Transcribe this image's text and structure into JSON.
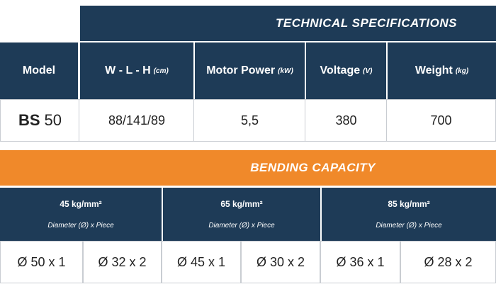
{
  "tech_specs": {
    "title": "TECHNICAL SPECIFICATIONS",
    "columns": [
      {
        "label": "Model"
      },
      {
        "label": "W - L - H",
        "unit": "(cm)"
      },
      {
        "label": "Motor Power",
        "unit": "(kW)"
      },
      {
        "label": "Voltage",
        "unit": "(V)"
      },
      {
        "label": "Weight",
        "unit": "(kg)"
      }
    ],
    "row": {
      "model": {
        "prefix": "BS",
        "number": "50"
      },
      "values": [
        "88/141/89",
        "5,5",
        "380",
        "700"
      ]
    }
  },
  "bending_capacity": {
    "title": "BENDING CAPACITY",
    "groups": [
      {
        "strength": "45 kg/mm²",
        "subtitle": "Diameter (Ø) x Piece",
        "values": [
          "Ø 50 x 1",
          "Ø 32 x 2"
        ]
      },
      {
        "strength": "65 kg/mm²",
        "subtitle": "Diameter (Ø) x Piece",
        "values": [
          "Ø 45 x 1",
          "Ø 30 x 2"
        ]
      },
      {
        "strength": "85 kg/mm²",
        "subtitle": "Diameter (Ø) x Piece",
        "values": [
          "Ø 36 x 1",
          "Ø 28 x 2"
        ]
      }
    ]
  }
}
